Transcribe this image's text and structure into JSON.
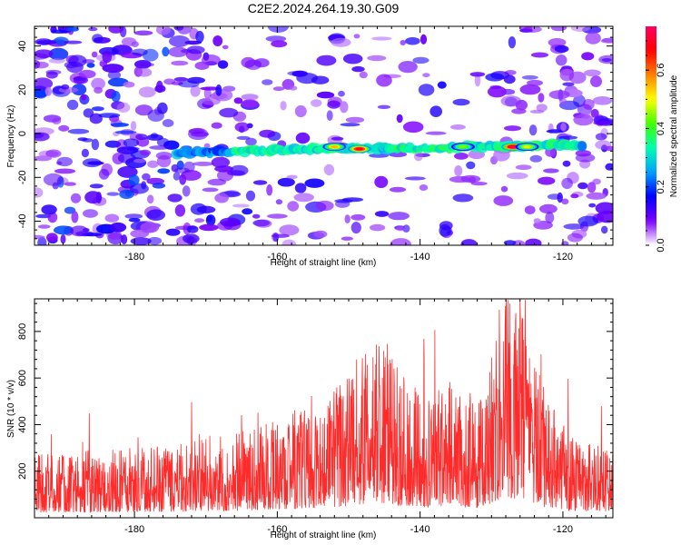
{
  "title": "C2E2.2024.264.19.30.G09",
  "chart_data": [
    {
      "type": "heatmap",
      "xlabel": "Height of straight line (km)",
      "ylabel": "Frequency (Hz)",
      "xlim": [
        -194,
        -113
      ],
      "ylim": [
        -51,
        49
      ],
      "x_ticks": [
        -180,
        -160,
        -140,
        -120
      ],
      "y_ticks": [
        -40,
        -20,
        0,
        20,
        40
      ],
      "colorbar": {
        "label": "Normalized spectral amplitude",
        "range": [
          0.0,
          0.75
        ],
        "ticks": [
          "0.0",
          "0.2",
          "0.4",
          "0.6"
        ],
        "colors": [
          "#ffffff",
          "#7b00ff",
          "#0000ff",
          "#00a0ff",
          "#00ffb0",
          "#40ff00",
          "#ffff00",
          "#ff8000",
          "#ff0000",
          "#ff0060"
        ]
      },
      "ridge": {
        "x_start": -174,
        "x_end": -117,
        "frequency": [
          [
            -174,
            -9
          ],
          [
            -165,
            -8
          ],
          [
            -155,
            -7
          ],
          [
            -148,
            -7
          ],
          [
            -140,
            -7
          ],
          [
            -134,
            -6
          ],
          [
            -128,
            -6
          ],
          [
            -122,
            -5
          ],
          [
            -117,
            -5
          ]
        ],
        "peaks": [
          {
            "x": -152,
            "y": -6,
            "amplitude": 0.55
          },
          {
            "x": -148.5,
            "y": -7,
            "amplitude": 0.7
          },
          {
            "x": -134,
            "y": -6,
            "amplitude": 0.45
          },
          {
            "x": -127,
            "y": -6,
            "amplitude": 0.75
          },
          {
            "x": -125,
            "y": -6,
            "amplitude": 0.5
          }
        ]
      }
    },
    {
      "type": "line",
      "xlabel": "Height of straight line (km)",
      "ylabel": "SNR (10 * v/v)",
      "xlim": [
        -194,
        -113
      ],
      "ylim": [
        0,
        940
      ],
      "x_ticks": [
        -180,
        -160,
        -140,
        -120
      ],
      "y_ticks": [
        200,
        400,
        600,
        800
      ],
      "color": "#ff2a2a",
      "envelope": [
        [
          -194,
          150
        ],
        [
          -185,
          160
        ],
        [
          -178,
          165
        ],
        [
          -174,
          170
        ],
        [
          -170,
          190
        ],
        [
          -165,
          200
        ],
        [
          -160,
          230
        ],
        [
          -155,
          270
        ],
        [
          -151,
          320
        ],
        [
          -148,
          390
        ],
        [
          -145,
          420
        ],
        [
          -143,
          350
        ],
        [
          -140,
          300
        ],
        [
          -136,
          330
        ],
        [
          -133,
          290
        ],
        [
          -131,
          270
        ],
        [
          -129,
          500
        ],
        [
          -127,
          560
        ],
        [
          -125,
          430
        ],
        [
          -122,
          270
        ],
        [
          -119,
          200
        ],
        [
          -116,
          170
        ],
        [
          -113,
          160
        ]
      ]
    }
  ]
}
